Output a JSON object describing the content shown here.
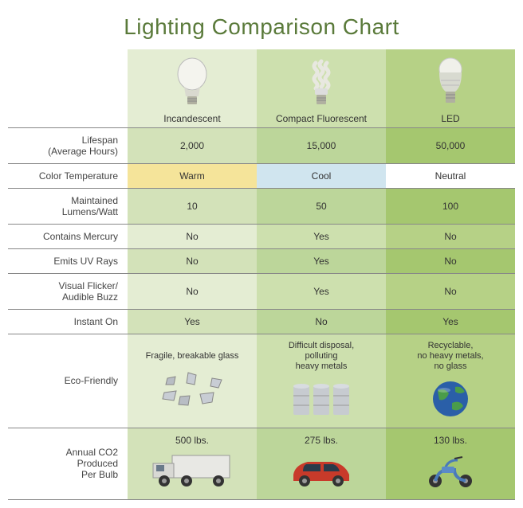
{
  "title": "Lighting Comparison Chart",
  "colors": {
    "col1_light": "#e4edd3",
    "col1_dark": "#d3e2b9",
    "col2_light": "#cde0ae",
    "col2_dark": "#bcd69a",
    "col3_light": "#b6d186",
    "col3_dark": "#a5c76f",
    "warm": "#f5e49a",
    "cool": "#d0e5ef",
    "neutral": "#ffffff",
    "border": "#888888",
    "title_color": "#5a7a3a"
  },
  "columns": [
    {
      "key": "incandescent",
      "name": "Incandescent",
      "header_bg": "#e4edd3"
    },
    {
      "key": "cfl",
      "name": "Compact Fluorescent",
      "header_bg": "#cde0ae"
    },
    {
      "key": "led",
      "name": "LED",
      "header_bg": "#b6d186"
    }
  ],
  "rows": {
    "lifespan": {
      "label": "Lifespan\n(Average Hours)",
      "cells": [
        {
          "text": "2,000",
          "bg": "#d3e2b9"
        },
        {
          "text": "15,000",
          "bg": "#bcd69a"
        },
        {
          "text": "50,000",
          "bg": "#a5c76f"
        }
      ]
    },
    "color_temp": {
      "label": "Color Temperature",
      "cells": [
        {
          "text": "Warm",
          "bg": "#f5e49a"
        },
        {
          "text": "Cool",
          "bg": "#d0e5ef"
        },
        {
          "text": "Neutral",
          "bg": "#ffffff"
        }
      ]
    },
    "lumens": {
      "label": "Maintained\nLumens/Watt",
      "cells": [
        {
          "text": "10",
          "bg": "#d3e2b9"
        },
        {
          "text": "50",
          "bg": "#bcd69a"
        },
        {
          "text": "100",
          "bg": "#a5c76f"
        }
      ]
    },
    "mercury": {
      "label": "Contains Mercury",
      "cells": [
        {
          "text": "No",
          "bg": "#e4edd3"
        },
        {
          "text": "Yes",
          "bg": "#cde0ae"
        },
        {
          "text": "No",
          "bg": "#b6d186"
        }
      ]
    },
    "uv": {
      "label": "Emits UV Rays",
      "cells": [
        {
          "text": "No",
          "bg": "#d3e2b9"
        },
        {
          "text": "Yes",
          "bg": "#bcd69a"
        },
        {
          "text": "No",
          "bg": "#a5c76f"
        }
      ]
    },
    "flicker": {
      "label": "Visual Flicker/\nAudible Buzz",
      "cells": [
        {
          "text": "No",
          "bg": "#e4edd3"
        },
        {
          "text": "Yes",
          "bg": "#cde0ae"
        },
        {
          "text": "No",
          "bg": "#b6d186"
        }
      ]
    },
    "instant": {
      "label": "Instant On",
      "cells": [
        {
          "text": "Yes",
          "bg": "#d3e2b9"
        },
        {
          "text": "No",
          "bg": "#bcd69a"
        },
        {
          "text": "Yes",
          "bg": "#a5c76f"
        }
      ]
    },
    "eco": {
      "label": "Eco-Friendly",
      "cells": [
        {
          "text": "Fragile, breakable glass",
          "bg": "#e4edd3",
          "icon": "broken-glass"
        },
        {
          "text": "Difficult disposal,\npolluting\nheavy metals",
          "bg": "#cde0ae",
          "icon": "barrels"
        },
        {
          "text": "Recyclable,\nno heavy metals,\nno glass",
          "bg": "#b6d186",
          "icon": "globe"
        }
      ]
    },
    "co2": {
      "label": "Annual CO2\nProduced\nPer Bulb",
      "cells": [
        {
          "text": "500 lbs.",
          "bg": "#d3e2b9",
          "icon": "truck"
        },
        {
          "text": "275 lbs.",
          "bg": "#bcd69a",
          "icon": "car"
        },
        {
          "text": "130 lbs.",
          "bg": "#a5c76f",
          "icon": "scooter"
        }
      ]
    }
  }
}
